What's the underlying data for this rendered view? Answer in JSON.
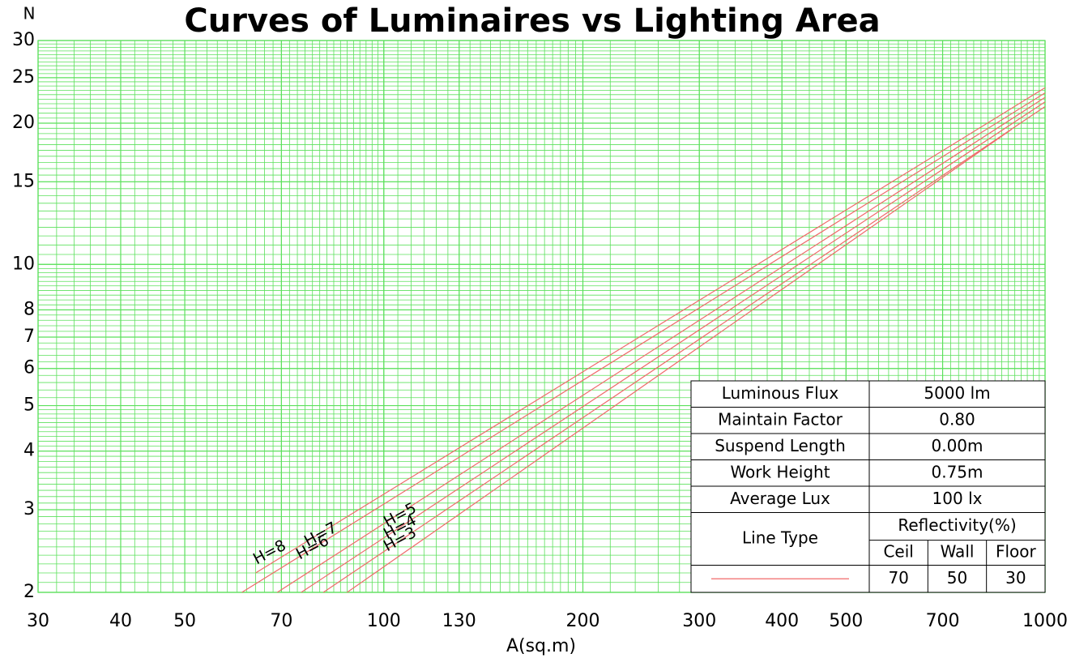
{
  "chart_data": {
    "type": "line",
    "title": "Curves of Luminaires vs Lighting Area",
    "x_label": "A(sq.m)",
    "y_label": "N",
    "xlog": true,
    "ylog": true,
    "grid": true,
    "xlim": [
      30,
      1000
    ],
    "ylim": [
      2,
      30
    ],
    "xticks": [
      30,
      40,
      50,
      70,
      100,
      130,
      200,
      300,
      400,
      500,
      700,
      1000
    ],
    "yticks": [
      2,
      3,
      4,
      5,
      6,
      7,
      8,
      10,
      15,
      20,
      25,
      30
    ],
    "series": [
      {
        "name": "H=8",
        "color": "#f06a6a",
        "x": [
          64,
          1000
        ],
        "values": [
          2.2,
          23.8
        ]
      },
      {
        "name": "H=7",
        "color": "#f06a6a",
        "x": [
          61,
          1000
        ],
        "values": [
          2,
          23.2
        ]
      },
      {
        "name": "H=6",
        "color": "#f06a6a",
        "x": [
          69,
          1000
        ],
        "values": [
          2,
          22.7
        ]
      },
      {
        "name": "H=5",
        "color": "#f06a6a",
        "x": [
          75,
          1000
        ],
        "values": [
          2,
          22.2
        ]
      },
      {
        "name": "H=4",
        "color": "#f06a6a",
        "x": [
          81,
          1000
        ],
        "values": [
          2,
          21.7
        ]
      },
      {
        "name": "H=3",
        "color": "#f06a6a",
        "x": [
          88,
          890
        ],
        "values": [
          2,
          19.4
        ]
      }
    ],
    "info_table": {
      "rows": [
        [
          "Luminous Flux",
          "5000 lm"
        ],
        [
          "Maintain Factor",
          "0.80"
        ],
        [
          "Suspend Length",
          "0.00m"
        ],
        [
          "Work Height",
          "0.75m"
        ],
        [
          "Average Lux",
          "100 lx"
        ]
      ],
      "line_type": "Line Type",
      "reflectivity": "Reflectivity(%)",
      "columns": [
        "Ceil",
        "Wall",
        "Floor"
      ],
      "values": [
        "70",
        "50",
        "30"
      ]
    }
  }
}
